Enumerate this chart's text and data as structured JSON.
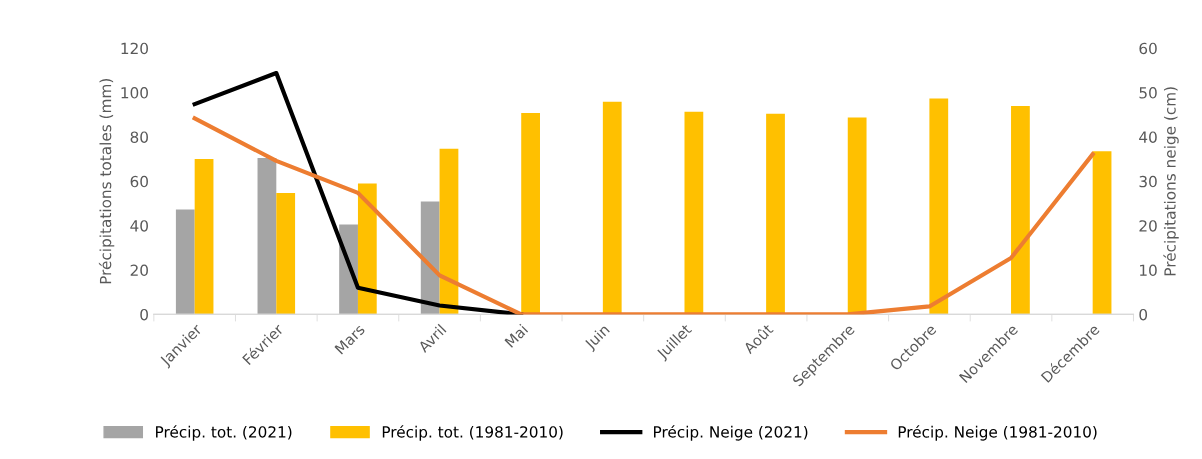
{
  "chart_data": {
    "type": "bar",
    "categories": [
      "Janvier",
      "Février",
      "Mars",
      "Avril",
      "Mai",
      "Juin",
      "Juillet",
      "Août",
      "Septembre",
      "Octobre",
      "Novembre",
      "Décembre"
    ],
    "series": [
      {
        "name": "Précip. tot. (2021)",
        "color": "#a5a5a5",
        "values": [
          47.3,
          70.5,
          40.5,
          50.9,
          null,
          null,
          null,
          null,
          null,
          null,
          null,
          null
        ]
      },
      {
        "name": "Précip. tot. (1981-2010)",
        "color": "#ffc000",
        "values": [
          70,
          54.7,
          59,
          74.7,
          90.8,
          95.9,
          91.4,
          90.5,
          88.8,
          97.3,
          93.9,
          73.6
        ]
      },
      {
        "name": "Précip. Neige (2021)",
        "type": "line",
        "axis": "y2",
        "color": "#000000",
        "values": [
          47.4,
          54.4,
          6.0,
          2.0,
          0,
          null,
          null,
          null,
          null,
          null,
          null,
          null
        ]
      },
      {
        "name": "Précip. Neige (1981-2010)",
        "type": "line",
        "axis": "y2",
        "color": "#ed7d31",
        "values": [
          44.2,
          34.6,
          27.4,
          8.8,
          0,
          0,
          0,
          0,
          0,
          1.8,
          12.7,
          36.1
        ]
      }
    ],
    "ylabel": "Précipitations totales (mm)",
    "y2label": "Précipitations neige (cm)",
    "ylim": [
      0,
      120
    ],
    "yticks": [
      0,
      20,
      40,
      60,
      80,
      100,
      120
    ],
    "y2lim": [
      0,
      60
    ],
    "y2ticks": [
      0,
      10,
      20,
      30,
      40,
      50,
      60
    ],
    "grid": false,
    "legend": "bottom",
    "marker": "none",
    "line_style": "solid"
  }
}
